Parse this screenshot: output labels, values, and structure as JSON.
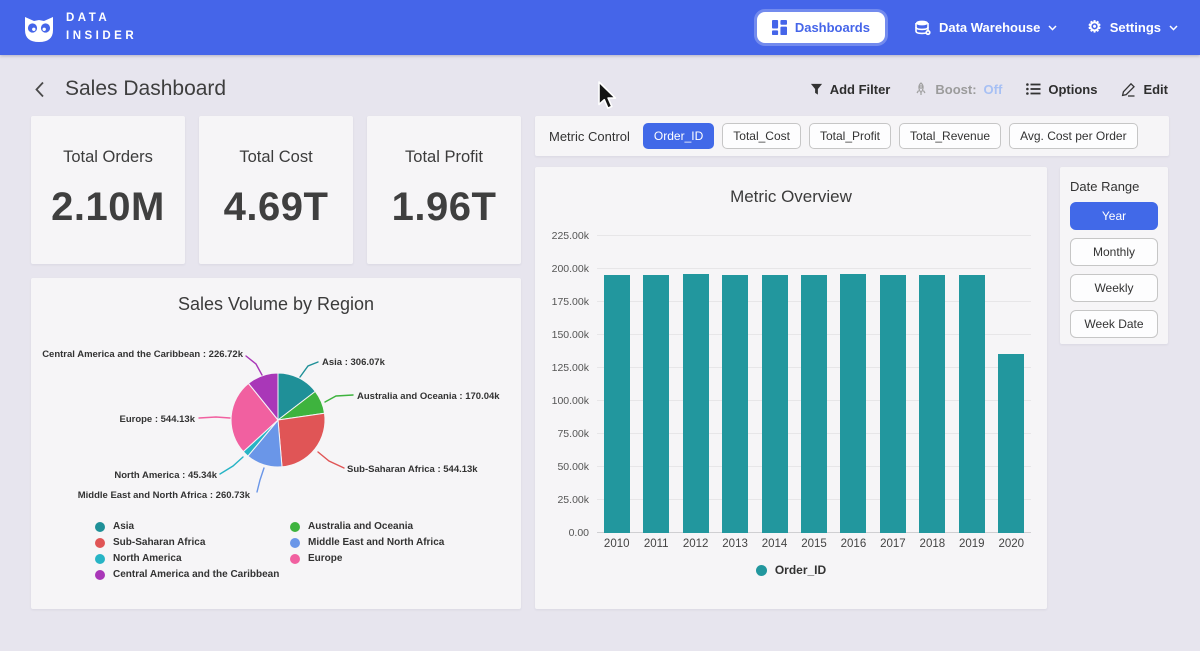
{
  "navbar": {
    "brand_line1": "DATA",
    "brand_line2": "INSIDER",
    "dashboards_label": "Dashboards",
    "data_warehouse_label": "Data Warehouse",
    "settings_label": "Settings"
  },
  "header": {
    "title": "Sales Dashboard",
    "add_filter_label": "Add Filter",
    "boost_label": "Boost:",
    "boost_state": "Off",
    "options_label": "Options",
    "edit_label": "Edit"
  },
  "kpis": [
    {
      "label": "Total Orders",
      "value": "2.10M"
    },
    {
      "label": "Total Cost",
      "value": "4.69T"
    },
    {
      "label": "Total Profit",
      "value": "1.96T"
    }
  ],
  "metric_control": {
    "label": "Metric Control",
    "options": [
      {
        "label": "Order_ID",
        "active": true
      },
      {
        "label": "Total_Cost",
        "active": false
      },
      {
        "label": "Total_Profit",
        "active": false
      },
      {
        "label": "Total_Revenue",
        "active": false
      },
      {
        "label": "Avg. Cost per Order",
        "active": false
      }
    ]
  },
  "date_range": {
    "label": "Date Range",
    "options": [
      {
        "label": "Year",
        "active": true
      },
      {
        "label": "Monthly",
        "active": false
      },
      {
        "label": "Weekly",
        "active": false
      },
      {
        "label": "Week Date",
        "active": false
      }
    ]
  },
  "colors": {
    "navbar_blue": "#4565e9",
    "accent_blue": "#4169e8",
    "bar_teal": "#22979e",
    "page_bg": "#e7e5ee",
    "card_bg": "#f6f5f7",
    "boost_off": "#a7c0f4"
  },
  "chart_data": [
    {
      "type": "bar",
      "title": "Metric Overview",
      "categories": [
        "2010",
        "2011",
        "2012",
        "2013",
        "2014",
        "2015",
        "2016",
        "2017",
        "2018",
        "2019",
        "2020"
      ],
      "series": [
        {
          "name": "Order_ID",
          "color": "#22979e",
          "values": [
            195400,
            195500,
            196500,
            195300,
            195400,
            195200,
            196600,
            195500,
            195400,
            195500,
            135600
          ]
        }
      ],
      "ylim": [
        0,
        225000
      ],
      "yticks": [
        {
          "value": 0,
          "label": "0.00"
        },
        {
          "value": 25000,
          "label": "25.00k"
        },
        {
          "value": 50000,
          "label": "50.00k"
        },
        {
          "value": 75000,
          "label": "75.00k"
        },
        {
          "value": 100000,
          "label": "100.00k"
        },
        {
          "value": 125000,
          "label": "125.00k"
        },
        {
          "value": 150000,
          "label": "150.00k"
        },
        {
          "value": 175000,
          "label": "175.00k"
        },
        {
          "value": 200000,
          "label": "200.00k"
        },
        {
          "value": 225000,
          "label": "225.00k"
        }
      ],
      "grid": true,
      "legend_position": "bottom"
    },
    {
      "type": "pie",
      "title": "Sales Volume by Region",
      "slices": [
        {
          "label": "Asia",
          "value": 306070,
          "display": "Asia : 306.07k",
          "color": "#1f9098"
        },
        {
          "label": "Australia and Oceania",
          "value": 170040,
          "display": "Australia and Oceania : 170.04k",
          "color": "#3eb33e"
        },
        {
          "label": "Sub-Saharan Africa",
          "value": 544130,
          "display": "Sub-Saharan Africa : 544.13k",
          "color": "#e05556"
        },
        {
          "label": "Middle East and North Africa",
          "value": 260730,
          "display": "Middle East and North Africa : 260.73k",
          "color": "#6a96e8"
        },
        {
          "label": "North America",
          "value": 45340,
          "display": "North America : 45.34k",
          "color": "#27b4c5"
        },
        {
          "label": "Europe",
          "value": 544130,
          "display": "Europe : 544.13k",
          "color": "#f160a0"
        },
        {
          "label": "Central America and the Caribbean",
          "value": 226720,
          "display": "Central America and the Caribbean : 226.72k",
          "color": "#a937b8"
        }
      ],
      "legend_position": "bottom"
    }
  ]
}
